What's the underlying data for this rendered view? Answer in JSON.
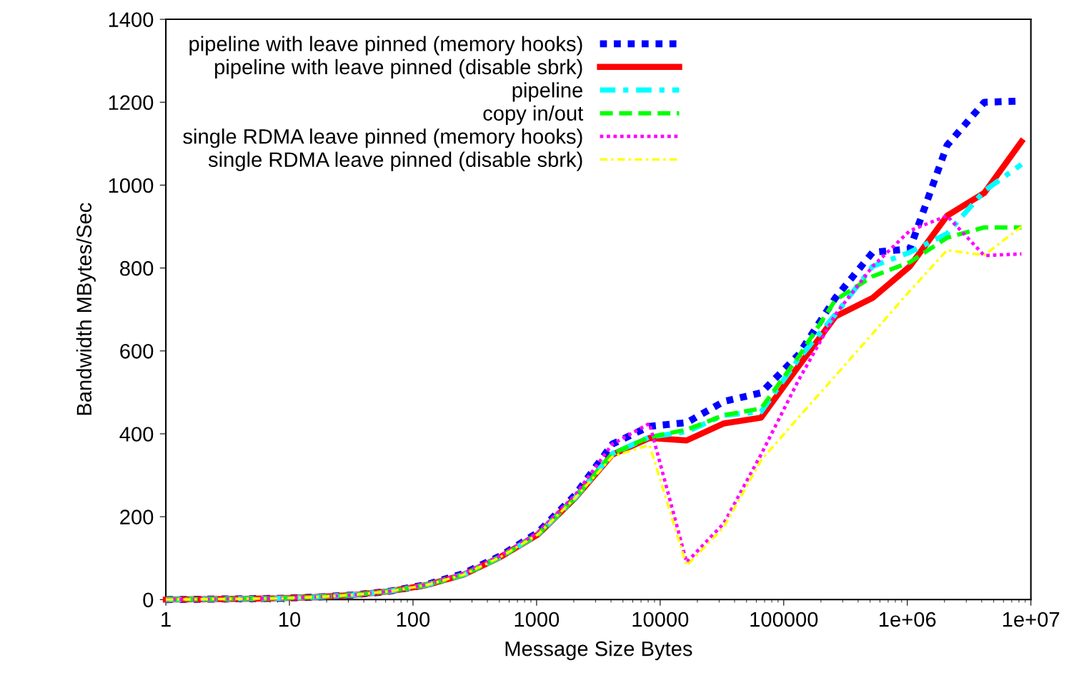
{
  "chart_data": {
    "type": "line",
    "xlabel": "Message Size Bytes",
    "ylabel": "Bandwidth MBytes/Sec",
    "x": [
      1,
      2,
      4,
      8,
      16,
      32,
      64,
      128,
      256,
      512,
      1024,
      2048,
      4096,
      8192,
      16384,
      32768,
      65536,
      131072,
      262144,
      524288,
      1048576,
      2097152,
      4194304,
      8388608
    ],
    "log": "x",
    "xlim": [
      1,
      10000000
    ],
    "xticks": [
      1,
      10,
      100,
      1000,
      10000,
      100000,
      {
        "value": 1000000,
        "label": "1e+06"
      },
      {
        "value": 10000000,
        "label": "1e+07"
      }
    ],
    "ylim": [
      0,
      1400
    ],
    "yticks": [
      0,
      200,
      400,
      600,
      800,
      1000,
      1200,
      1400
    ],
    "grid": false,
    "legend": "top left",
    "marker": "none",
    "series": [
      {
        "name": "pipeline with leave pinned (memory hooks)",
        "color": "#0000ff",
        "line_style": "dotted",
        "values": [
          0,
          1,
          2,
          3,
          6,
          11,
          20,
          36,
          63,
          106,
          162,
          252,
          375,
          418,
          427,
          478,
          499,
          590,
          728,
          838,
          846,
          1096,
          1200,
          1203
        ]
      },
      {
        "name": "pipeline with leave pinned (disable sbrk)",
        "color": "#ff0000",
        "line_style": "solid",
        "values": [
          0,
          1,
          2,
          3,
          6,
          11,
          20,
          35,
          60,
          103,
          157,
          245,
          350,
          390,
          384,
          425,
          439,
          562,
          683,
          728,
          804,
          926,
          981,
          1105
        ]
      },
      {
        "name": "pipeline",
        "color": "#00ffff",
        "line_style": "dashdot",
        "values": [
          0,
          1,
          2,
          3,
          6,
          11,
          20,
          35,
          60,
          103,
          157,
          245,
          352,
          392,
          405,
          445,
          453,
          580,
          688,
          804,
          838,
          883,
          986,
          1050
        ]
      },
      {
        "name": "copy in/out",
        "color": "#00ff00",
        "line_style": "dashed",
        "values": [
          0,
          1,
          2,
          3,
          6,
          11,
          20,
          35,
          60,
          103,
          157,
          245,
          352,
          392,
          410,
          445,
          461,
          585,
          723,
          780,
          814,
          873,
          898,
          898
        ]
      },
      {
        "name": "single RDMA leave pinned (memory hooks)",
        "color": "#ff00ff",
        "line_style": "dotted",
        "values": [
          0,
          1,
          2,
          3,
          6,
          11,
          20,
          36,
          63,
          106,
          162,
          252,
          375,
          425,
          90,
          184,
          350,
          528,
          688,
          804,
          890,
          926,
          830,
          834
        ]
      },
      {
        "name": "single RDMA leave pinned (disable sbrk)",
        "color": "#ffff00",
        "line_style": "dashdot",
        "values": [
          0,
          1,
          2,
          3,
          6,
          11,
          20,
          35,
          60,
          103,
          157,
          245,
          345,
          373,
          82,
          175,
          336,
          439,
          540,
          642,
          745,
          843,
          831,
          900
        ]
      }
    ]
  }
}
